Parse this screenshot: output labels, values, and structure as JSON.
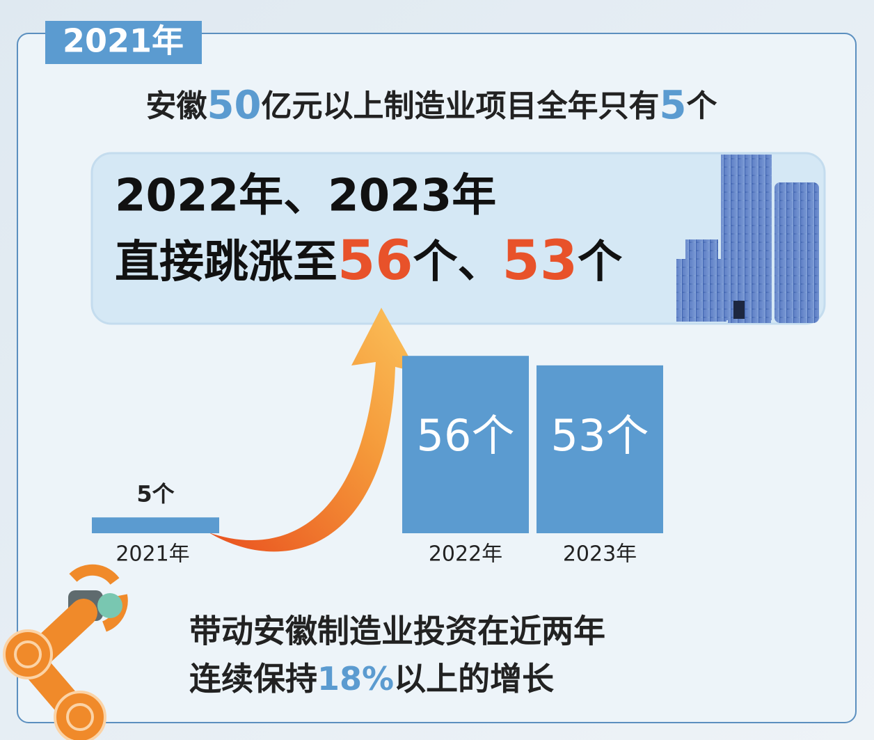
{
  "tag": "2021年",
  "headline": [
    "安徽",
    "50",
    "亿元以上制造业项目全年只有",
    "5",
    "个"
  ],
  "banner": {
    "line1": "2022年、2023年",
    "line2": [
      "直接跳涨至",
      "56",
      "个、",
      "53",
      "个"
    ]
  },
  "chart_data": {
    "type": "bar",
    "categories": [
      "2021年",
      "2022年",
      "2023年"
    ],
    "values": [
      5,
      56,
      53
    ],
    "value_labels": [
      "5个",
      "56个",
      "53个"
    ],
    "color": "#5b9bd0"
  },
  "footer": {
    "line1": "带动安徽制造业投资在近两年",
    "line2": [
      "连续保持",
      "18%",
      "以上的增长"
    ]
  }
}
